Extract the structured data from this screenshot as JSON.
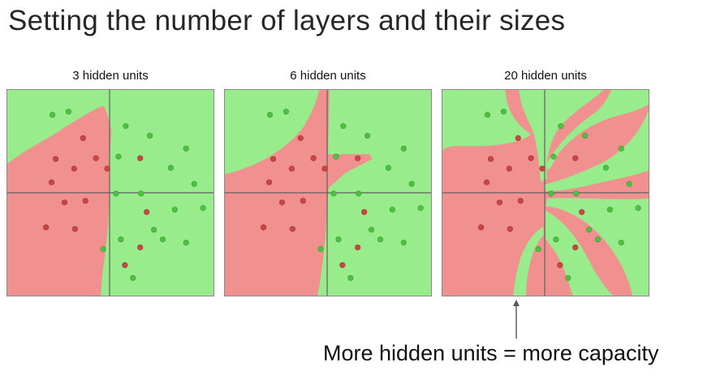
{
  "title": "Setting the number of layers and their sizes",
  "panels": [
    {
      "label": "3 hidden units"
    },
    {
      "label": "6 hidden units"
    },
    {
      "label": "20 hidden units"
    }
  ],
  "caption": "More hidden units = more capacity",
  "colors": {
    "green_region": "#98ec8c",
    "red_region": "#f09190",
    "green_point": "#4fc142",
    "red_point": "#cc4545",
    "axis": "#606060"
  }
}
